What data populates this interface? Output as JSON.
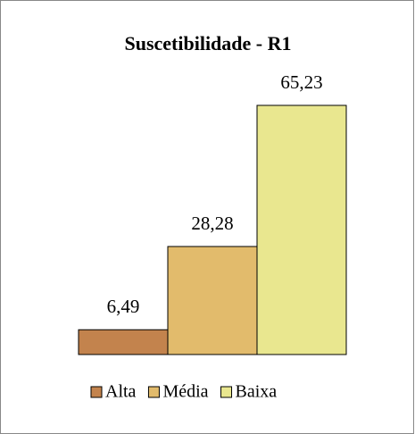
{
  "chart_data": {
    "type": "bar",
    "title": "Suscetibilidade - R1",
    "categories": [
      "Alta",
      "Média",
      "Baixa"
    ],
    "values": [
      6.49,
      28.28,
      65.23
    ],
    "value_labels": [
      "6,49",
      "28,28",
      "65,23"
    ],
    "colors": [
      "#c3834d",
      "#e2bb6c",
      "#e9e78f"
    ],
    "legend": "bottom"
  }
}
